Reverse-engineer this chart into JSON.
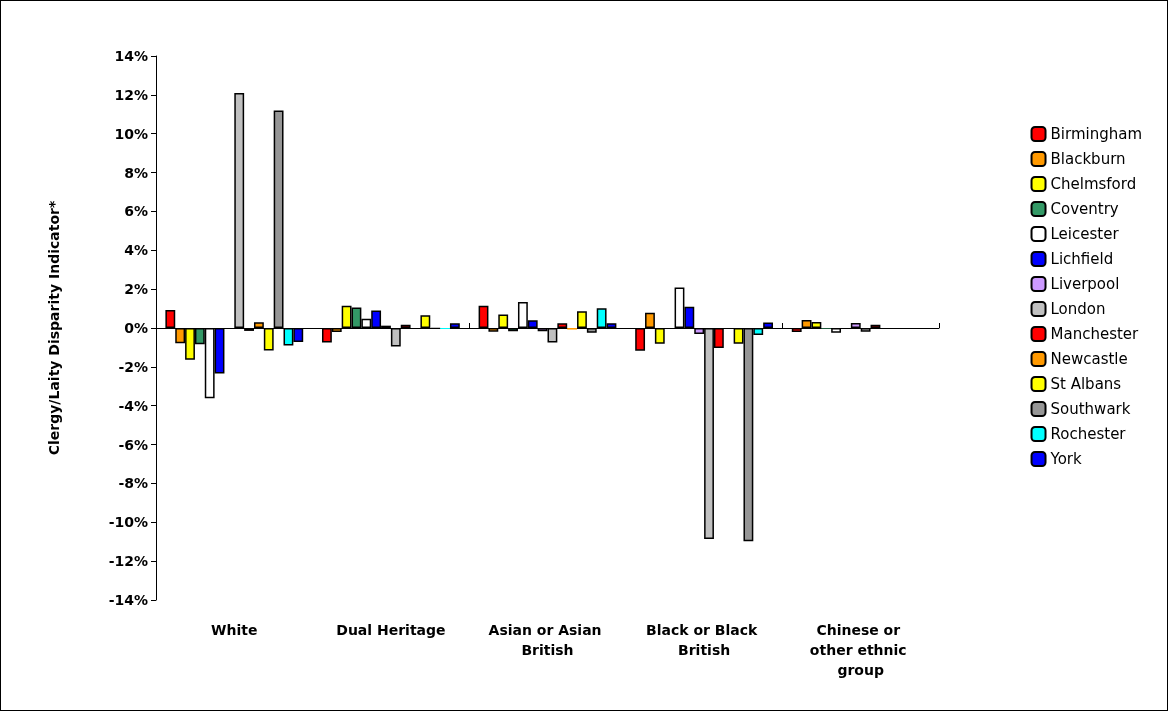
{
  "chart_data": {
    "type": "bar",
    "ylabel": "Clergy/Laity Disparity Indicator*",
    "categories": [
      "White",
      "Dual Heritage",
      "Asian or Asian British",
      "Black or Black British",
      "Chinese or other ethnic group"
    ],
    "series": [
      {
        "name": "Birmingham",
        "color": "#ff0000",
        "values": [
          0.93,
          -0.74,
          1.15,
          -1.17,
          -0.2
        ]
      },
      {
        "name": "Blackburn",
        "color": "#ff9900",
        "values": [
          -0.78,
          -0.2,
          -0.19,
          0.78,
          0.41
        ]
      },
      {
        "name": "Chelmsford",
        "color": "#ffff00",
        "values": [
          -1.64,
          1.15,
          0.69,
          -0.81,
          0.31
        ]
      },
      {
        "name": "Coventry",
        "color": "#339966",
        "values": [
          -0.83,
          1.05,
          -0.17,
          0.0,
          -0.03
        ]
      },
      {
        "name": "Leicester",
        "color": "#ffffff",
        "values": [
          -3.62,
          0.47,
          1.34,
          2.09,
          -0.24
        ]
      },
      {
        "name": "Lichfield",
        "color": "#0000ff",
        "values": [
          -2.34,
          0.9,
          0.4,
          1.1,
          0.0
        ]
      },
      {
        "name": "Liverpool",
        "color": "#cc99ff",
        "values": [
          null,
          0.12,
          -0.17,
          -0.31,
          0.26
        ]
      },
      {
        "name": "London",
        "color": "#c0c0c0",
        "values": [
          12.1,
          -0.95,
          -0.74,
          -10.86,
          -0.19
        ]
      },
      {
        "name": "Manchester",
        "color": "#ff0000",
        "values": [
          -0.15,
          0.17,
          0.24,
          -1.03,
          0.17
        ]
      },
      {
        "name": "Newcastle",
        "color": "#ff9900",
        "values": [
          0.29,
          null,
          -0.08,
          0.0,
          0.0
        ]
      },
      {
        "name": "St Albans",
        "color": "#ffff00",
        "values": [
          -1.16,
          0.65,
          0.86,
          -0.81,
          0.0
        ]
      },
      {
        "name": "Southwark",
        "color": "#969696",
        "values": [
          11.2,
          0.03,
          -0.24,
          -10.98,
          0.0
        ]
      },
      {
        "name": "Rochester",
        "color": "#00ffff",
        "values": [
          -0.9,
          -0.05,
          1.02,
          -0.36,
          0.0
        ]
      },
      {
        "name": "York",
        "color": "#0000ff",
        "values": [
          -0.72,
          0.24,
          0.25,
          0.28,
          0.0
        ]
      }
    ],
    "ylim": [
      -14,
      14
    ],
    "yticks": [
      {
        "value": -14,
        "label": "-14%"
      },
      {
        "value": -12,
        "label": "-12%"
      },
      {
        "value": -10,
        "label": "-10%"
      },
      {
        "value": -8,
        "label": "-8%"
      },
      {
        "value": -6,
        "label": "-6%"
      },
      {
        "value": -4,
        "label": "-4%"
      },
      {
        "value": -2,
        "label": "-2%"
      },
      {
        "value": 0,
        "label": "0%"
      },
      {
        "value": 2,
        "label": "2%"
      },
      {
        "value": 4,
        "label": "4%"
      },
      {
        "value": 6,
        "label": "6%"
      },
      {
        "value": 8,
        "label": "8%"
      },
      {
        "value": 10,
        "label": "10%"
      },
      {
        "value": 12,
        "label": "12%"
      },
      {
        "value": 14,
        "label": "14%"
      }
    ],
    "legend": "right"
  }
}
